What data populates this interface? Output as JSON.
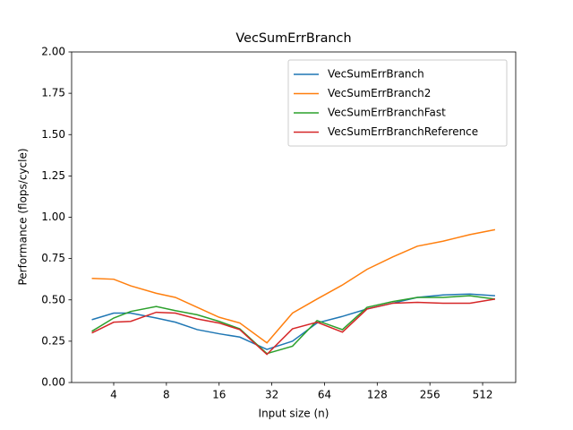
{
  "chart_data": {
    "type": "line",
    "title": "VecSumErrBranch",
    "xlabel": "Input size (n)",
    "ylabel": "Performance (flops/cycle)",
    "x": [
      3,
      4,
      5,
      7,
      9,
      12,
      16,
      21,
      30,
      42,
      58,
      81,
      112,
      157,
      217,
      304,
      433,
      603
    ],
    "xscale": "log2",
    "xlim": [
      2.3,
      791
    ],
    "xticks": [
      4,
      8,
      16,
      32,
      64,
      128,
      256,
      512
    ],
    "ylim": [
      0,
      2
    ],
    "yticks": [
      {
        "value": 0,
        "label": "0.00"
      },
      {
        "value": 0.25,
        "label": "0.25"
      },
      {
        "value": 0.5,
        "label": "0.50"
      },
      {
        "value": 0.75,
        "label": "0.75"
      },
      {
        "value": 1,
        "label": "1.00"
      },
      {
        "value": 1.25,
        "label": "1.25"
      },
      {
        "value": 1.5,
        "label": "1.50"
      },
      {
        "value": 1.75,
        "label": "1.75"
      },
      {
        "value": 2,
        "label": "2.00"
      }
    ],
    "legend": "upper right",
    "series": [
      {
        "name": "VecSumErrBranch",
        "color": "#1f77b4",
        "values": [
          0.38,
          0.42,
          0.42,
          0.39,
          0.365,
          0.32,
          0.295,
          0.275,
          0.2,
          0.25,
          0.36,
          0.4,
          0.445,
          0.48,
          0.515,
          0.53,
          0.535,
          0.525
        ]
      },
      {
        "name": "VecSumErrBranch2",
        "color": "#ff7f0e",
        "values": [
          0.63,
          0.625,
          0.585,
          0.54,
          0.515,
          0.455,
          0.395,
          0.36,
          0.24,
          0.42,
          0.505,
          0.59,
          0.685,
          0.76,
          0.825,
          0.855,
          0.895,
          0.925
        ]
      },
      {
        "name": "VecSumErrBranchFast",
        "color": "#2ca02c",
        "values": [
          0.31,
          0.39,
          0.43,
          0.46,
          0.435,
          0.41,
          0.37,
          0.325,
          0.175,
          0.22,
          0.375,
          0.32,
          0.455,
          0.49,
          0.515,
          0.515,
          0.525,
          0.505
        ]
      },
      {
        "name": "VecSumErrBranchReference",
        "color": "#d62728",
        "values": [
          0.3,
          0.365,
          0.37,
          0.425,
          0.42,
          0.385,
          0.36,
          0.32,
          0.17,
          0.325,
          0.365,
          0.305,
          0.445,
          0.48,
          0.485,
          0.48,
          0.48,
          0.505
        ]
      }
    ]
  }
}
